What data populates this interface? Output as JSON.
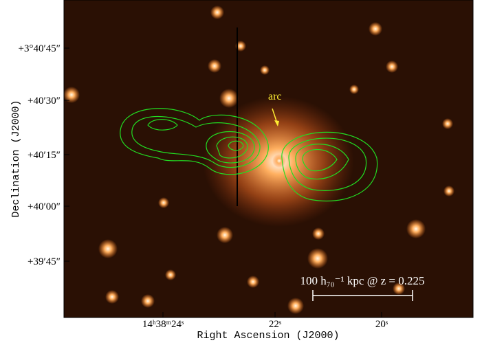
{
  "figure": {
    "x_axis": {
      "label": "Right Ascension (J2000)",
      "ticks": [
        "14ʰ38ᵐ24ˢ",
        "22ˢ",
        "20ˢ"
      ]
    },
    "y_axis": {
      "label": "Declination (J2000)",
      "ticks": [
        "+3°40′45″",
        "+40′30″",
        "+40′15″",
        "+40′00″",
        "+39′45″"
      ]
    },
    "annotations": {
      "arc": "arc",
      "scale_bar": "100 h₇₀⁻¹ kpc @ z = 0.225"
    }
  }
}
